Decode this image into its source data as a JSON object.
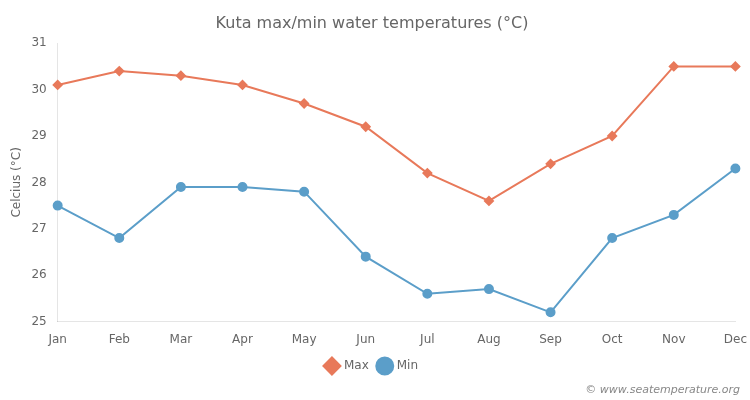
{
  "chart_data": {
    "type": "line",
    "title": "Kuta max/min water temperatures (°C)",
    "y_label": "Celcius (°C)",
    "categories": [
      "Jan",
      "Feb",
      "Mar",
      "Apr",
      "May",
      "Jun",
      "Jul",
      "Aug",
      "Sep",
      "Oct",
      "Nov",
      "Dec"
    ],
    "series": [
      {
        "name": "Max",
        "color": "#e8795a",
        "marker": "diamond",
        "values": [
          30.1,
          30.4,
          30.3,
          30.1,
          29.7,
          29.2,
          28.2,
          27.6,
          28.4,
          29.0,
          30.5,
          30.5
        ]
      },
      {
        "name": "Min",
        "color": "#5b9ec9",
        "marker": "circle",
        "values": [
          27.5,
          26.8,
          27.9,
          27.9,
          27.8,
          26.4,
          25.6,
          25.7,
          25.2,
          26.8,
          27.3,
          28.3
        ]
      }
    ],
    "ylim": [
      25,
      31
    ],
    "yticks": [
      25,
      26,
      27,
      28,
      29,
      30,
      31
    ],
    "grid": false,
    "legend": "bottom",
    "annotations": [
      "© www.seatemperature.org"
    ]
  }
}
